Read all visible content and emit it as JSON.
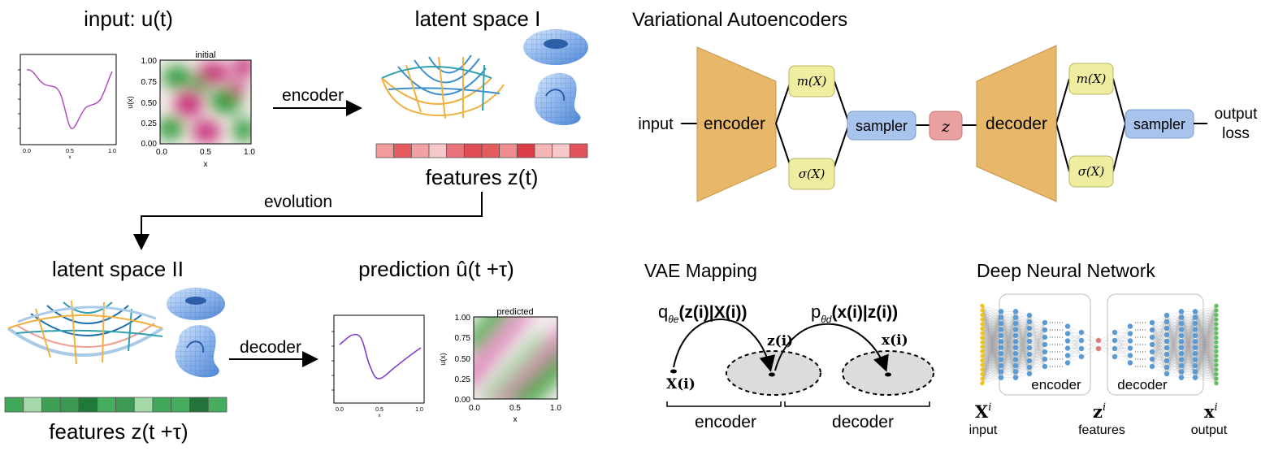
{
  "left": {
    "input_title": "input: u(t)",
    "latent1_title": "latent space I",
    "features1_label": "features z(t)",
    "encoder_arrow_label": "encoder",
    "evolution_label": "evolution",
    "latent2_title": "latent space II",
    "prediction_title": "prediction û(t +τ)",
    "decoder_arrow_label": "decoder",
    "features2_label": "features z(t +τ)",
    "heatmap1": {
      "title": "initial",
      "ylabel": "u(x)",
      "xlabel": "x",
      "y_ticks": [
        "1.00",
        "0.75",
        "0.50",
        "0.25",
        "0.00"
      ],
      "x_ticks": [
        "0.0",
        "0.5",
        "1.0"
      ]
    },
    "heatmap2": {
      "title": "predicted",
      "ylabel": "u(x)",
      "xlabel": "x",
      "y_ticks": [
        "1.00",
        "0.75",
        "0.50",
        "0.25",
        "0.00"
      ],
      "x_ticks": [
        "0.0",
        "0.5",
        "1.0"
      ]
    },
    "plot1": {
      "x_ticks": [
        "0.0",
        "0.5",
        "1.0"
      ],
      "xlabel": "x"
    },
    "plot2": {
      "x_ticks": [
        "0.0",
        "0.5",
        "1.0"
      ],
      "xlabel": "x"
    },
    "feature_bar_1": [
      "#f29b9b",
      "#e55c5f",
      "#f2a1a3",
      "#f7c8c9",
      "#e9737a",
      "#e04c53",
      "#e55c5f",
      "#ef8c8f",
      "#dc3c45",
      "#f5b5b6",
      "#f7c8c9",
      "#e2525a"
    ],
    "feature_bar_2": [
      "#41a85a",
      "#a4d8a8",
      "#3f9f56",
      "#3a9852",
      "#1f7a3a",
      "#46ad5f",
      "#3c9a54",
      "#a4d8a8",
      "#41a85a",
      "#46ad5f",
      "#23733a",
      "#46ad5f"
    ]
  },
  "vae": {
    "title": "Variational Autoencoders",
    "input_label": "input",
    "encoder_label": "encoder",
    "mean_label": "m(X)",
    "sigma_label": "σ(X)",
    "sampler_label": "sampler",
    "z_label": "z",
    "decoder_label": "decoder",
    "mean2_label": "m(X)",
    "sigma2_label": "σ(X)",
    "sampler2_label": "sampler",
    "output_label_1": "output",
    "output_label_2": "loss"
  },
  "mapping": {
    "title": "VAE Mapping",
    "q_label": "q",
    "q_sub": "θe",
    "q_args": "(z(i)|X(i))",
    "p_label": "p",
    "p_sub": "θd",
    "p_args": "(x(i)|z(i))",
    "z_point": "z(i)",
    "x_point": "x(i)",
    "X_point": "X(i)",
    "encoder_label": "encoder",
    "decoder_label": "decoder"
  },
  "dnn": {
    "title": "Deep Neural Network",
    "encoder_label": "encoder",
    "decoder_label": "decoder",
    "X_symbol": "X",
    "z_symbol": "z",
    "x_symbol": "x",
    "sup": "i",
    "input_label": "input",
    "features_label": "features",
    "output_label": "output",
    "colors": {
      "input": "#f0c419",
      "hidden": "#5b9bd5",
      "latent": "#e07b7b",
      "output": "#5cc05c"
    }
  },
  "colors": {
    "encoder_fill": "#e8b86a",
    "mean_fill": "#eeeda0",
    "sampler_fill": "#a8c4ec",
    "z_fill": "#e8a0a0"
  }
}
